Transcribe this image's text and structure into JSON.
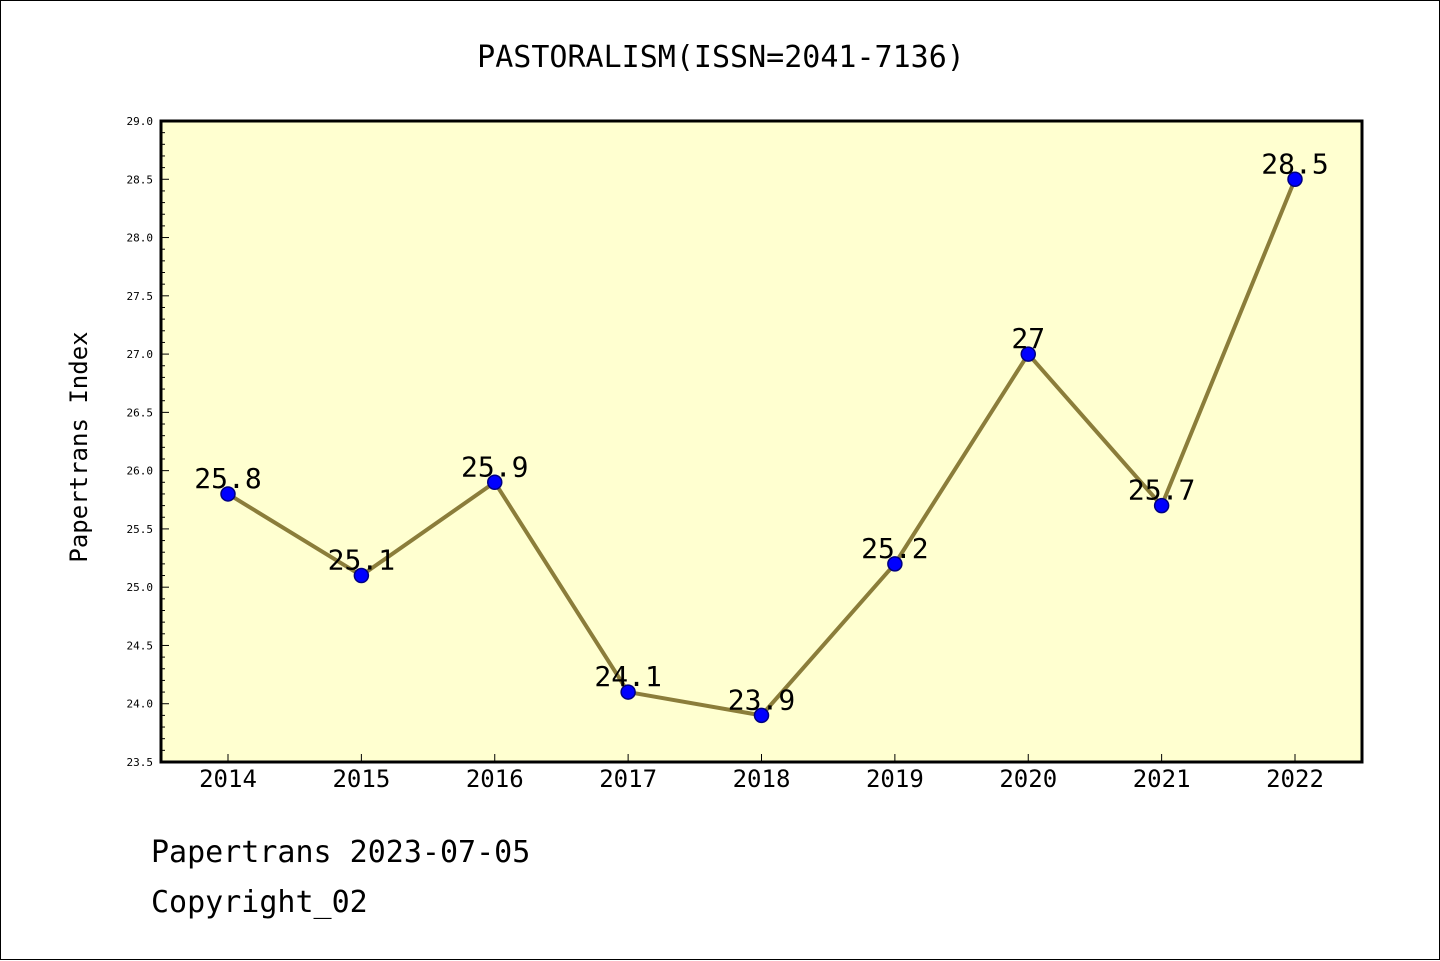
{
  "chart_data": {
    "type": "line",
    "title": "PASTORALISM(ISSN=2041-7136)",
    "xlabel": "",
    "ylabel": "Papertrans Index",
    "categories": [
      "2014",
      "2015",
      "2016",
      "2017",
      "2018",
      "2019",
      "2020",
      "2021",
      "2022"
    ],
    "series": [
      {
        "values": [
          25.8,
          25.1,
          25.9,
          24.1,
          23.9,
          25.2,
          27,
          25.7,
          28.5
        ],
        "data_labels": [
          "25.8",
          "25.1",
          "25.9",
          "24.1",
          "23.9",
          "25.2",
          "27",
          "25.7",
          "28.5"
        ]
      }
    ],
    "ylim": [
      23.5,
      29.0
    ],
    "yticks": [
      "23.5",
      "24.0",
      "24.5",
      "25.0",
      "25.5",
      "26.0",
      "26.5",
      "27.0",
      "27.5",
      "28.0",
      "28.5",
      "29.0"
    ],
    "grid": false,
    "legend": "none",
    "colors": {
      "plot_background": "#ffffd0",
      "line": "#8b7d3a",
      "marker_fill": "#0000ff",
      "marker_edge": "#000080"
    }
  },
  "footer": {
    "date_line": "Papertrans 2023-07-05",
    "copyright": "Copyright_02"
  }
}
